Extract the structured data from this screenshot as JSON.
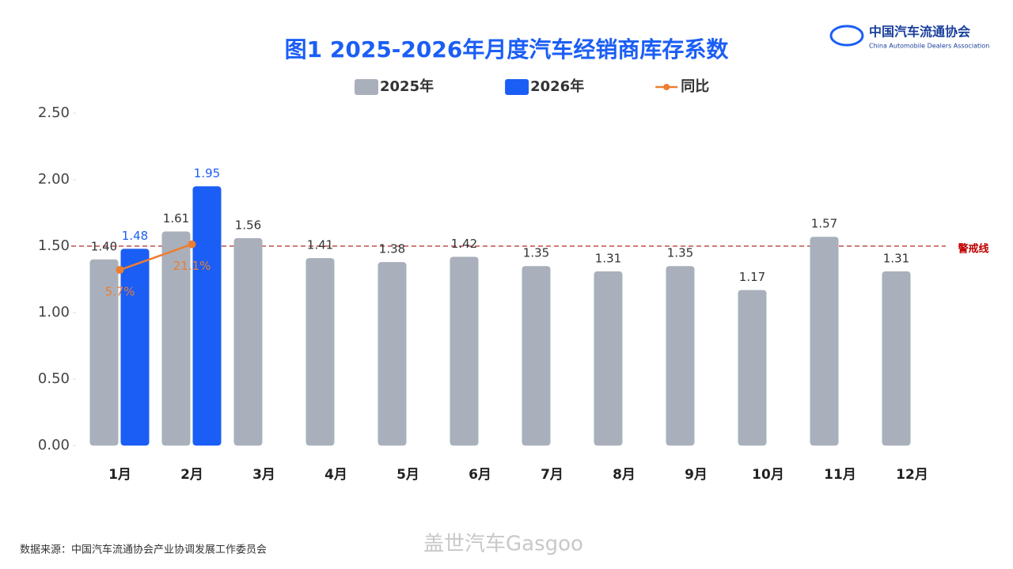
{
  "chart_data": {
    "type": "bar",
    "title": "图1  2025-2026年月度汽车经销商库存系数",
    "logo": {
      "name": "中国汽车流通协会",
      "name_en": "China Automobile Dealers Association"
    },
    "categories": [
      "1月",
      "2月",
      "3月",
      "4月",
      "5月",
      "6月",
      "7月",
      "8月",
      "9月",
      "10月",
      "11月",
      "12月"
    ],
    "series": [
      {
        "name": "2025年",
        "color": "#a9b0bb",
        "type": "bar",
        "values": [
          1.4,
          1.61,
          1.56,
          1.41,
          1.38,
          1.42,
          1.35,
          1.31,
          1.35,
          1.17,
          1.57,
          1.31
        ],
        "value_labels": [
          "1.40",
          "1.61",
          "1.56",
          "1.41",
          "1.38",
          "1.42",
          "1.35",
          "1.31",
          "1.35",
          "1.17",
          "1.57",
          "1.31"
        ]
      },
      {
        "name": "2026年",
        "color": "#1b5ef5",
        "type": "bar",
        "values": [
          1.48,
          1.95,
          null,
          null,
          null,
          null,
          null,
          null,
          null,
          null,
          null,
          null
        ],
        "value_labels": [
          "1.48",
          "1.95",
          null,
          null,
          null,
          null,
          null,
          null,
          null,
          null,
          null,
          null
        ]
      },
      {
        "name": "同比",
        "color": "#ed7d31",
        "type": "line",
        "axis": "y2",
        "values": [
          5.7,
          21.1,
          null,
          null,
          null,
          null,
          null,
          null,
          null,
          null,
          null,
          null
        ],
        "value_labels": [
          "5.7%",
          "21.1%",
          null,
          null,
          null,
          null,
          null,
          null,
          null,
          null,
          null,
          null
        ]
      }
    ],
    "ylim": [
      0,
      2.5
    ],
    "yticks": [
      {
        "value": 0,
        "label": "0.00"
      },
      {
        "value": 0.5,
        "label": "0.50"
      },
      {
        "value": 1,
        "label": "1.00"
      },
      {
        "value": 1.5,
        "label": "1.50"
      },
      {
        "value": 2,
        "label": "2.00"
      },
      {
        "value": 2.5,
        "label": "2.50"
      }
    ],
    "y2lim": [
      -100,
      100
    ],
    "threshold": {
      "value": 1.5,
      "label": "警戒线",
      "color": "#c0504d"
    },
    "legend": "top",
    "source": "数据来源：中国汽车流通协会产业协调发展工作委员会",
    "watermark": "盖世汽车Gasgoo"
  }
}
